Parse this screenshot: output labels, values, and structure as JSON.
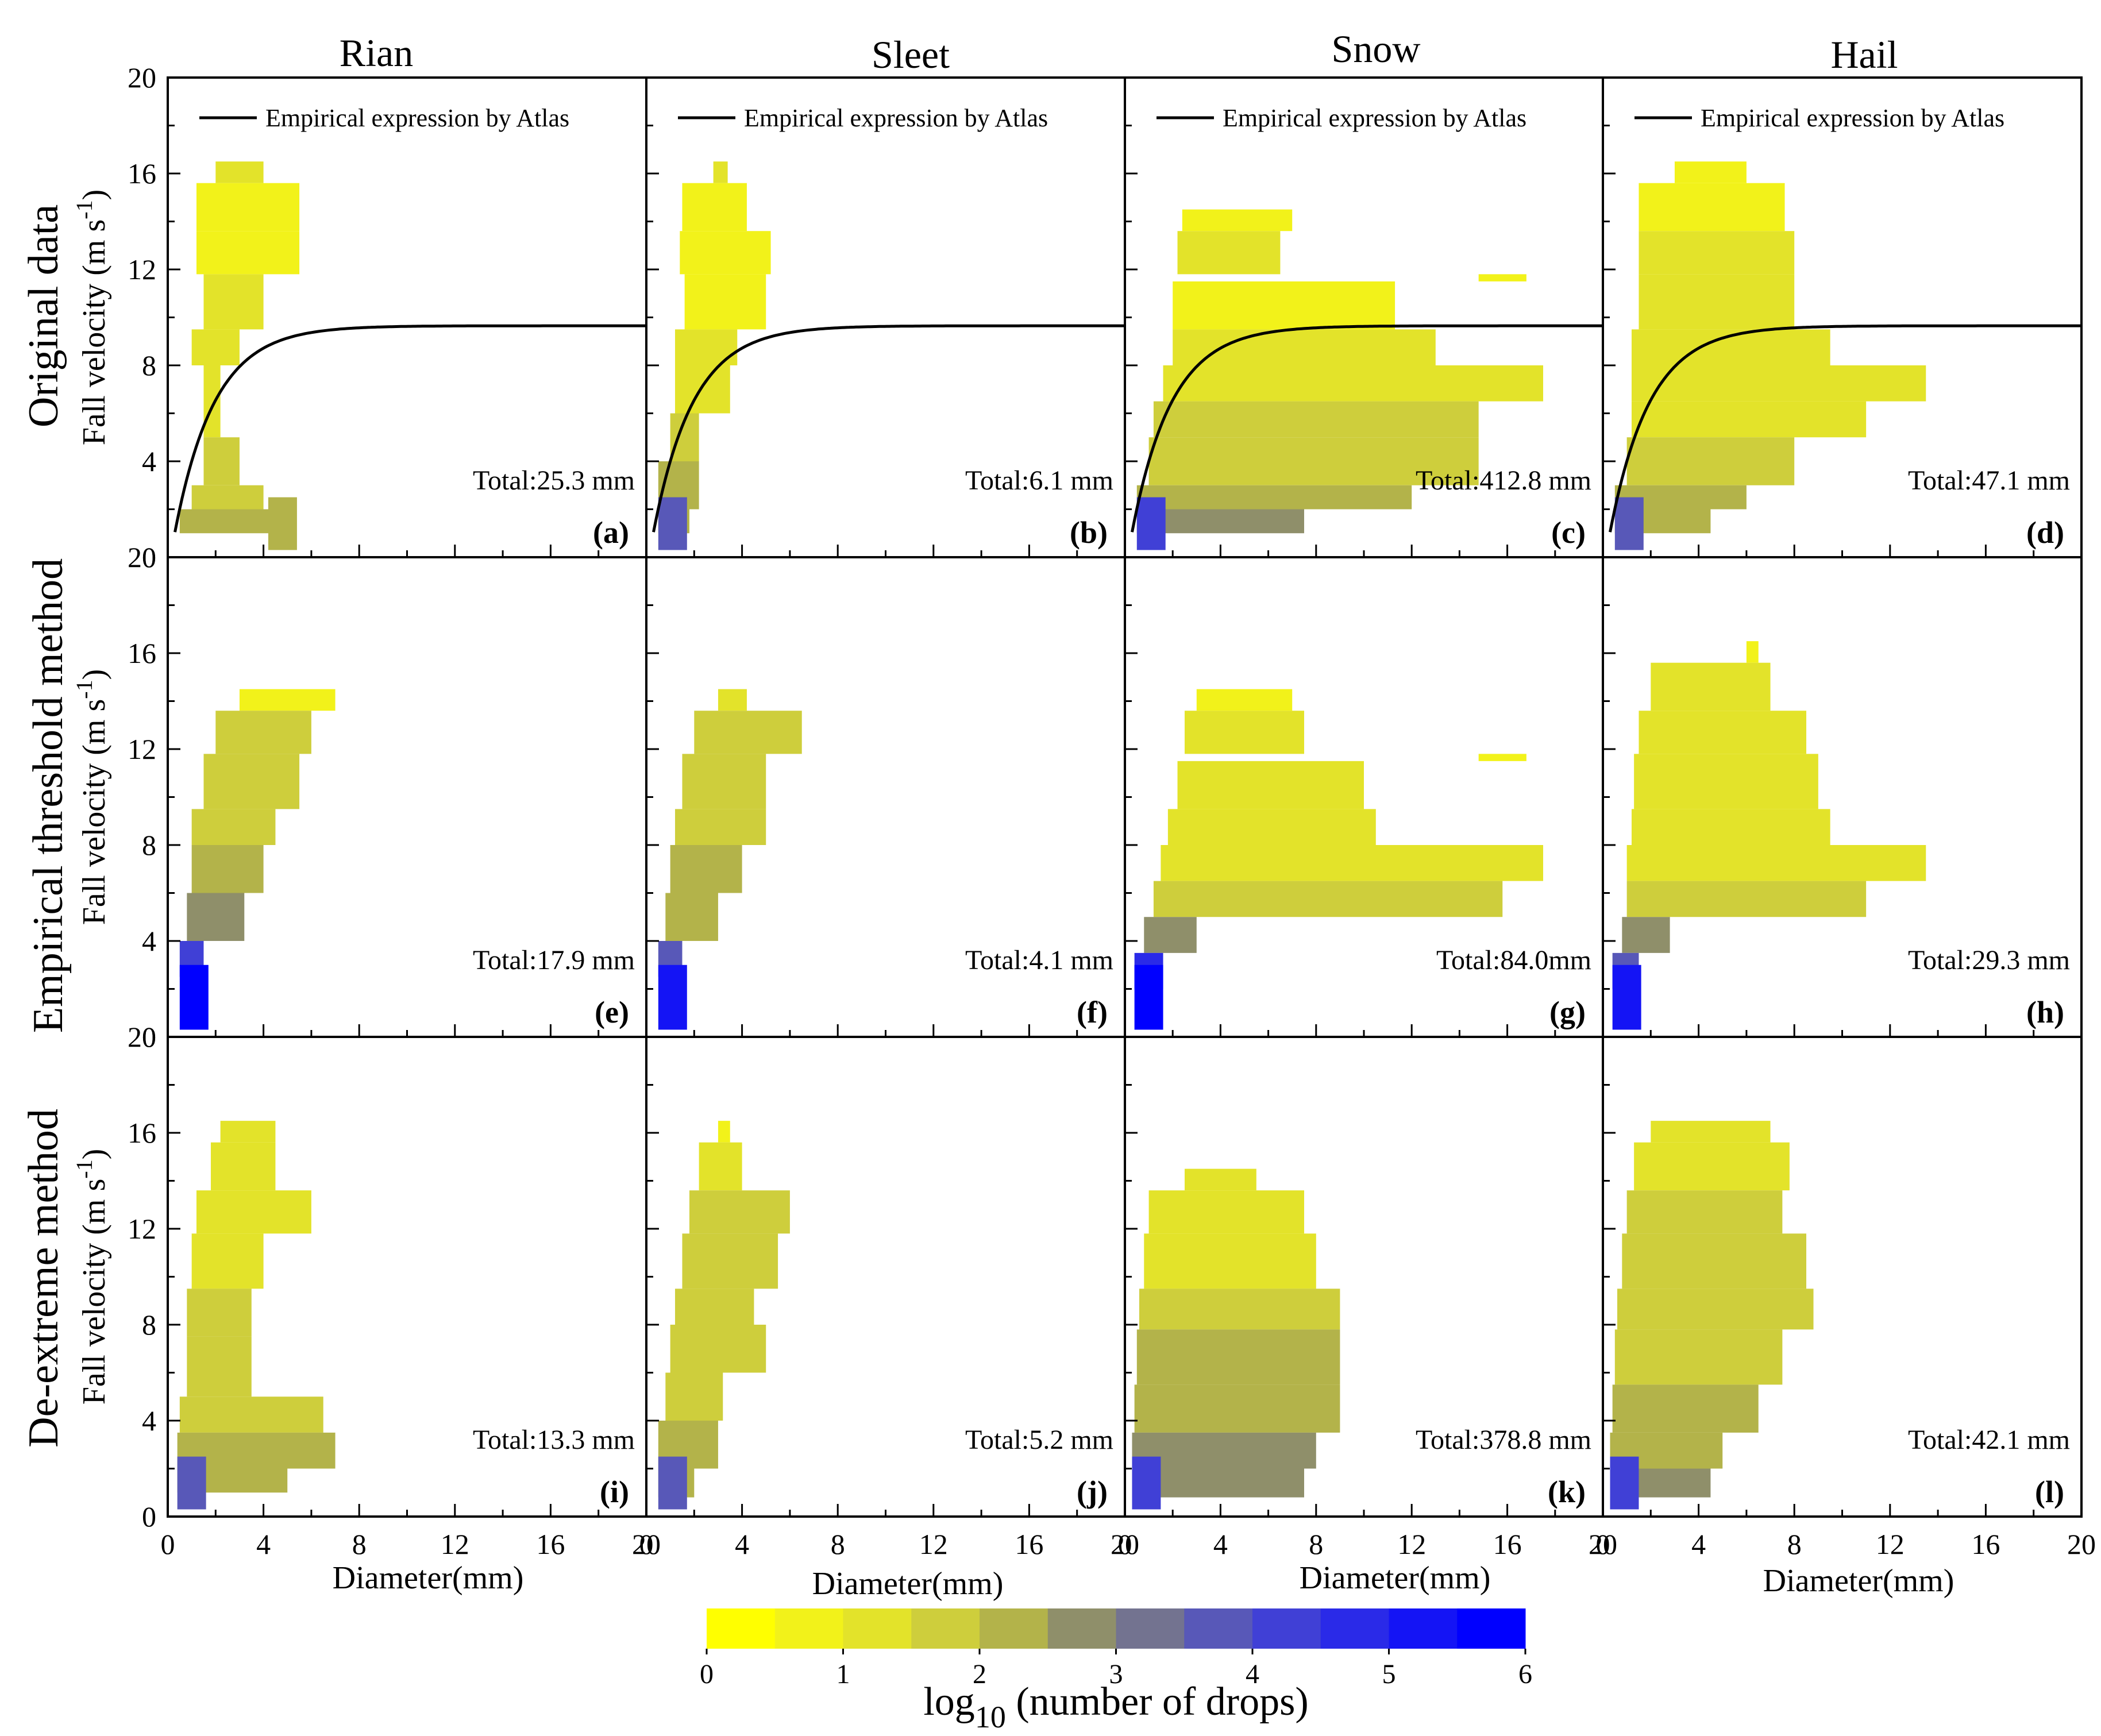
{
  "columns": [
    "Rian",
    "Sleet",
    "Snow",
    "Hail"
  ],
  "rows": [
    "Original data",
    "Empirical threshold method",
    "De-extreme method"
  ],
  "ylabel": {
    "main": "Fall velocity (m s",
    "sup": "-1",
    "end": ")"
  },
  "xlabel": "Diameter(mm)",
  "legend_label": "Empirical expression by Atlas",
  "colorbar": {
    "title_prefix": "log",
    "title_sub": "10",
    "title_suffix": " (number of drops)",
    "ticks": [
      "0",
      "1",
      "2",
      "3",
      "4",
      "5",
      "6"
    ],
    "colors": [
      "#ffff00",
      "#f2f21a",
      "#e3e32a",
      "#cece3c",
      "#b3b34a",
      "#8f8f6a",
      "#737390",
      "#5858b8",
      "#4040d6",
      "#2a2ae8",
      "#1414f5",
      "#0000ff"
    ]
  },
  "colors": {
    "accent": "#0000ff",
    "low": "#ffff00",
    "curve": "#000000"
  },
  "chart_data": [
    {
      "type": "heatmap",
      "id": "a",
      "row": 0,
      "col": 0,
      "label": "(a)",
      "total": "Total:25.3 mm",
      "xlim": [
        0,
        20
      ],
      "ylim": [
        0,
        20
      ],
      "xticks": [
        0,
        4,
        8,
        12,
        16,
        20
      ],
      "yticks": [
        0,
        4,
        8,
        12,
        16,
        20
      ],
      "atlas_curve": true,
      "blocks": [
        [
          2,
          15.6,
          4,
          1
        ],
        [
          3.5,
          15.6,
          4.5,
          1
        ],
        [
          1.2,
          13.6,
          5.5,
          0.8
        ],
        [
          1.2,
          11.8,
          5.5,
          0.9
        ],
        [
          1.5,
          9.5,
          4,
          1
        ],
        [
          1,
          8,
          3,
          1.3
        ],
        [
          1.5,
          5,
          2.2,
          1
        ],
        [
          1.5,
          3,
          3,
          1.5
        ],
        [
          1,
          2,
          4,
          1.8
        ],
        [
          0.5,
          1,
          5,
          2
        ],
        [
          4.2,
          0.8,
          2.5,
          0.8
        ]
      ]
    },
    {
      "type": "heatmap",
      "id": "b",
      "row": 0,
      "col": 1,
      "label": "(b)",
      "total": "Total:6.1 mm",
      "xlim": [
        0,
        20
      ],
      "ylim": [
        0,
        20
      ],
      "xticks": [
        0,
        4,
        8,
        12,
        16,
        20
      ],
      "yticks": [
        0,
        4,
        8,
        12,
        16,
        20
      ],
      "atlas_curve": true,
      "blocks": [
        [
          2.8,
          15.6,
          3.4,
          1
        ],
        [
          1.5,
          13.6,
          4.2,
          0.8
        ],
        [
          1.4,
          11.8,
          5.2,
          0.9
        ],
        [
          1.6,
          9.5,
          5,
          0.8
        ],
        [
          1.2,
          8,
          3.8,
          1.2
        ],
        [
          1.2,
          6,
          3.5,
          1.4
        ],
        [
          1,
          4,
          2.2,
          1.6
        ],
        [
          0.5,
          2,
          2.2,
          2
        ],
        [
          0.5,
          1,
          1.8,
          2.2
        ]
      ]
    },
    {
      "type": "heatmap",
      "id": "c",
      "row": 0,
      "col": 2,
      "label": "(c)",
      "total": "Total:412.8 mm",
      "xlim": [
        0,
        20
      ],
      "ylim": [
        0,
        20
      ],
      "xticks": [
        0,
        4,
        8,
        12,
        16,
        20
      ],
      "yticks": [
        0,
        4,
        8,
        12,
        16,
        20
      ],
      "atlas_curve": true,
      "blocks": [
        [
          2.4,
          13.6,
          7,
          0.8
        ],
        [
          2.2,
          11.8,
          6.5,
          1
        ],
        [
          14.8,
          11.5,
          16.8,
          0.6
        ],
        [
          2,
          9.5,
          11.3,
          0.8
        ],
        [
          2,
          8,
          13,
          1
        ],
        [
          1.6,
          6.5,
          17.5,
          1.2
        ],
        [
          1.2,
          5,
          14.8,
          1.5
        ],
        [
          1,
          3,
          14.8,
          1.6
        ],
        [
          0.5,
          2,
          12,
          2
        ],
        [
          0.5,
          1,
          7.5,
          2.6
        ]
      ]
    },
    {
      "type": "heatmap",
      "id": "d",
      "row": 0,
      "col": 3,
      "label": "(d)",
      "total": "Total:47.1 mm",
      "xlim": [
        0,
        20
      ],
      "ylim": [
        0,
        20
      ],
      "xticks": [
        0,
        4,
        8,
        12,
        16,
        20
      ],
      "yticks": [
        0,
        4,
        8,
        12,
        16,
        20
      ],
      "atlas_curve": true,
      "blocks": [
        [
          3,
          15.6,
          6,
          0.9
        ],
        [
          1.5,
          13.6,
          7.6,
          0.9
        ],
        [
          1.5,
          11.8,
          8,
          1
        ],
        [
          1.5,
          9.5,
          8,
          1
        ],
        [
          1.2,
          8,
          9.5,
          1.1
        ],
        [
          1.2,
          6.5,
          13.5,
          1.2
        ],
        [
          1.2,
          5,
          11,
          1.4
        ],
        [
          1,
          3,
          8,
          1.8
        ],
        [
          0.5,
          2,
          6,
          2.2
        ],
        [
          0.5,
          1,
          4.5,
          2.4
        ]
      ]
    },
    {
      "type": "heatmap",
      "id": "e",
      "row": 1,
      "col": 0,
      "label": "(e)",
      "total": "Total:17.9 mm",
      "xlim": [
        0,
        20
      ],
      "ylim": [
        0,
        20
      ],
      "xticks": [
        0,
        4,
        8,
        12,
        16,
        20
      ],
      "yticks": [
        0,
        4,
        8,
        12,
        16,
        20
      ],
      "atlas_curve": false,
      "blocks": [
        [
          3,
          13.6,
          7,
          0.9
        ],
        [
          2,
          11.8,
          6,
          1.5
        ],
        [
          1.5,
          9.5,
          5.5,
          1.6
        ],
        [
          1,
          8,
          4.5,
          1.8
        ],
        [
          1,
          6,
          4,
          2
        ],
        [
          0.8,
          4,
          3.2,
          2.5
        ],
        [
          0.5,
          2.5,
          1.5,
          4
        ]
      ]
    },
    {
      "type": "heatmap",
      "id": "f",
      "row": 1,
      "col": 1,
      "label": "(f)",
      "total": "Total:4.1 mm",
      "xlim": [
        0,
        20
      ],
      "ylim": [
        0,
        20
      ],
      "xticks": [
        0,
        4,
        8,
        12,
        16,
        20
      ],
      "yticks": [
        0,
        4,
        8,
        12,
        16,
        20
      ],
      "atlas_curve": false,
      "blocks": [
        [
          3,
          13.6,
          4.2,
          1
        ],
        [
          2,
          11.8,
          6.5,
          1.5
        ],
        [
          1.5,
          9.5,
          5,
          1.6
        ],
        [
          1.2,
          8,
          5,
          1.8
        ],
        [
          1,
          6,
          4,
          2
        ],
        [
          0.8,
          4,
          3,
          2.4
        ],
        [
          0.5,
          2.5,
          1.5,
          3.5
        ]
      ]
    },
    {
      "type": "heatmap",
      "id": "g",
      "row": 1,
      "col": 2,
      "label": "(g)",
      "total": "Total:84.0mm",
      "xlim": [
        0,
        20
      ],
      "ylim": [
        0,
        20
      ],
      "xticks": [
        0,
        4,
        8,
        12,
        16,
        20
      ],
      "yticks": [
        0,
        4,
        8,
        12,
        16,
        20
      ],
      "atlas_curve": false,
      "blocks": [
        [
          3,
          13.6,
          7,
          0.9
        ],
        [
          2.5,
          11.8,
          7.5,
          1
        ],
        [
          14.8,
          11.5,
          16.8,
          0.6
        ],
        [
          2.2,
          9.5,
          10,
          1
        ],
        [
          1.8,
          8,
          10.5,
          1
        ],
        [
          1.5,
          6.5,
          17.5,
          1.2
        ],
        [
          1.2,
          5,
          15.8,
          1.5
        ],
        [
          0.8,
          3.5,
          3,
          2.6
        ],
        [
          0.4,
          2,
          1.6,
          4.5
        ]
      ]
    },
    {
      "type": "heatmap",
      "id": "h",
      "row": 1,
      "col": 3,
      "label": "(h)",
      "total": "Total:29.3 mm",
      "xlim": [
        0,
        20
      ],
      "ylim": [
        0,
        20
      ],
      "xticks": [
        0,
        4,
        8,
        12,
        16,
        20
      ],
      "yticks": [
        0,
        4,
        8,
        12,
        16,
        20
      ],
      "atlas_curve": false,
      "blocks": [
        [
          6,
          15.6,
          6.5,
          0.8
        ],
        [
          2,
          13.6,
          7,
          1.2
        ],
        [
          1.5,
          11.8,
          8.5,
          1.3
        ],
        [
          1.3,
          9.5,
          9,
          1.3
        ],
        [
          1.2,
          8,
          9.5,
          1.3
        ],
        [
          1,
          6.5,
          13.5,
          1.3
        ],
        [
          1,
          5,
          11,
          1.6
        ],
        [
          0.8,
          3.5,
          2.8,
          2.5
        ],
        [
          0.4,
          2,
          1.5,
          3.8
        ]
      ]
    },
    {
      "type": "heatmap",
      "id": "i",
      "row": 2,
      "col": 0,
      "label": "(i)",
      "total": "Total:13.3 mm",
      "xlim": [
        0,
        20
      ],
      "ylim": [
        0,
        20
      ],
      "xticks": [
        0,
        4,
        8,
        12,
        16,
        20
      ],
      "yticks": [
        0,
        4,
        8,
        12,
        16,
        20
      ],
      "atlas_curve": false,
      "blocks": [
        [
          2.2,
          15.6,
          4.5,
          1
        ],
        [
          1.8,
          13.6,
          4.5,
          1
        ],
        [
          1.2,
          11.8,
          6,
          1.3
        ],
        [
          1,
          9.5,
          4,
          1.4
        ],
        [
          0.8,
          7.5,
          3.5,
          1.8
        ],
        [
          0.8,
          5,
          3.5,
          1.8
        ],
        [
          0.5,
          3.5,
          6.5,
          1.6
        ],
        [
          0.4,
          2,
          7,
          2.2
        ],
        [
          0.4,
          1,
          5,
          2
        ]
      ]
    },
    {
      "type": "heatmap",
      "id": "j",
      "row": 2,
      "col": 1,
      "label": "(j)",
      "total": "Total:5.2 mm",
      "xlim": [
        0,
        20
      ],
      "ylim": [
        0,
        20
      ],
      "xticks": [
        0,
        4,
        8,
        12,
        16,
        20
      ],
      "yticks": [
        0,
        4,
        8,
        12,
        16,
        20
      ],
      "atlas_curve": false,
      "blocks": [
        [
          3,
          15.6,
          3.5,
          0.8
        ],
        [
          2.2,
          13.6,
          4,
          1.2
        ],
        [
          1.8,
          11.8,
          6,
          1.5
        ],
        [
          1.5,
          9.5,
          5.5,
          1.5
        ],
        [
          1.2,
          8,
          4.5,
          1.6
        ],
        [
          1,
          6,
          5,
          1.5
        ],
        [
          0.8,
          4,
          3.2,
          1.8
        ],
        [
          0.5,
          2,
          3,
          2
        ],
        [
          0.5,
          0.8,
          2,
          2.2
        ]
      ]
    },
    {
      "type": "heatmap",
      "id": "k",
      "row": 2,
      "col": 2,
      "label": "(k)",
      "total": "Total:378.8 mm",
      "xlim": [
        0,
        20
      ],
      "ylim": [
        0,
        20
      ],
      "xticks": [
        0,
        4,
        8,
        12,
        16,
        20
      ],
      "yticks": [
        0,
        4,
        8,
        12,
        16,
        20
      ],
      "atlas_curve": false,
      "blocks": [
        [
          2.5,
          13.6,
          5.5,
          1
        ],
        [
          1,
          11.8,
          7.5,
          1.2
        ],
        [
          0.8,
          9.5,
          8,
          1.4
        ],
        [
          0.6,
          7.8,
          9,
          1.6
        ],
        [
          0.5,
          5.5,
          9,
          2
        ],
        [
          0.4,
          3.5,
          9,
          2.3
        ],
        [
          0.3,
          2,
          8,
          2.6
        ],
        [
          0.3,
          0.8,
          7.5,
          2.8
        ]
      ]
    },
    {
      "type": "heatmap",
      "id": "l",
      "row": 2,
      "col": 3,
      "label": "(l)",
      "total": "Total:42.1 mm",
      "xlim": [
        0,
        20
      ],
      "ylim": [
        0,
        20
      ],
      "xticks": [
        0,
        4,
        8,
        12,
        16,
        20
      ],
      "yticks": [
        0,
        4,
        8,
        12,
        16,
        20
      ],
      "atlas_curve": false,
      "blocks": [
        [
          2,
          15.6,
          7,
          1
        ],
        [
          1.3,
          13.6,
          7.8,
          1.2
        ],
        [
          1,
          11.8,
          7.5,
          1.5
        ],
        [
          0.8,
          9.5,
          8.5,
          1.5
        ],
        [
          0.6,
          7.8,
          8.8,
          1.6
        ],
        [
          0.5,
          5.5,
          7.5,
          1.8
        ],
        [
          0.4,
          3.5,
          6.5,
          2.2
        ],
        [
          0.3,
          2,
          5,
          2.4
        ],
        [
          0.3,
          0.8,
          4.5,
          2.6
        ]
      ]
    }
  ]
}
